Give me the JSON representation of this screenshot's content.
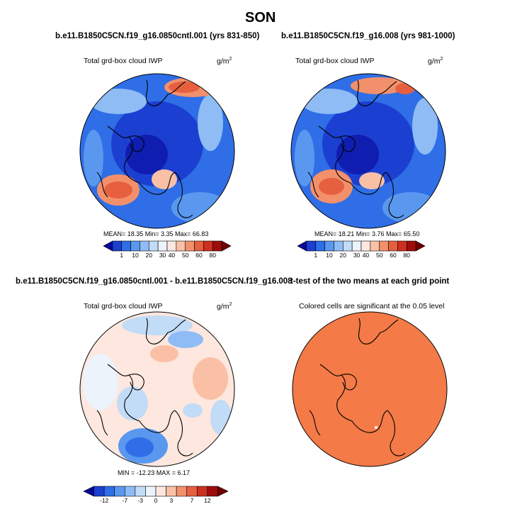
{
  "page_title": "SON",
  "panels": [
    {
      "title": "b.e11.B1850C5CN.f19_g16.0850cntl.001 (yrs 831-850)",
      "variable": "Total grd-box cloud IWP",
      "units": "g/m",
      "units_sup": "2",
      "stats": "MEAN=  18.35  Min=   3.35  Max=  66.83",
      "colorbar": {
        "ticks": [
          "1",
          "10",
          "20",
          "30",
          "40",
          "50",
          "60",
          "80"
        ],
        "colors": [
          "#08089a",
          "#1b3fd1",
          "#2f6ee6",
          "#5a98f0",
          "#8fbcf5",
          "#c2dbf7",
          "#ecf3fb",
          "#fde7de",
          "#f9c0a6",
          "#f3906c",
          "#e6603f",
          "#cc3020",
          "#a00c0c",
          "#700000"
        ]
      }
    },
    {
      "title": "b.e11.B1850C5CN.f19_g16.008 (yrs 981-1000)",
      "variable": "Total grd-box cloud IWP",
      "units": "g/m",
      "units_sup": "2",
      "stats": "MEAN=  18.21  Min=   3.76  Max=  65.50",
      "colorbar": {
        "ticks": [
          "1",
          "10",
          "20",
          "30",
          "40",
          "50",
          "60",
          "80"
        ],
        "colors": [
          "#08089a",
          "#1b3fd1",
          "#2f6ee6",
          "#5a98f0",
          "#8fbcf5",
          "#c2dbf7",
          "#ecf3fb",
          "#fde7de",
          "#f9c0a6",
          "#f3906c",
          "#e6603f",
          "#cc3020",
          "#a00c0c",
          "#700000"
        ]
      }
    },
    {
      "title": "b.e11.B1850C5CN.f19_g16.0850cntl.001 - b.e11.B1850C5CN.f19_g16.008",
      "variable": "Total grd-box cloud IWP",
      "units": "g/m",
      "units_sup": "2",
      "stats": "MIN = -12.23 MAX =   6.17",
      "colorbar": {
        "ticks": [
          "-12",
          "-7",
          "-3",
          "0",
          "3",
          "7",
          "12"
        ],
        "colors": [
          "#08089a",
          "#1b3fd1",
          "#2f6ee6",
          "#5a98f0",
          "#8fbcf5",
          "#c2dbf7",
          "#ecf3fb",
          "#fde7de",
          "#f9c0a6",
          "#f3906c",
          "#e6603f",
          "#cc3020",
          "#a00c0c",
          "#700000"
        ]
      }
    },
    {
      "title": "t-test of the two means at each grid point",
      "variable": "Colored cells are significant at the 0.05 level",
      "fill_color": "#f47a47"
    }
  ],
  "map_colors": {
    "ocean_blue": "#2f6ee6",
    "deep_blue": "#1b3fd1",
    "light_blue": "#8fbcf5",
    "warm": "#f3906c",
    "hot": "#e6603f",
    "pale": "#fde7de",
    "coast": "#000000"
  }
}
